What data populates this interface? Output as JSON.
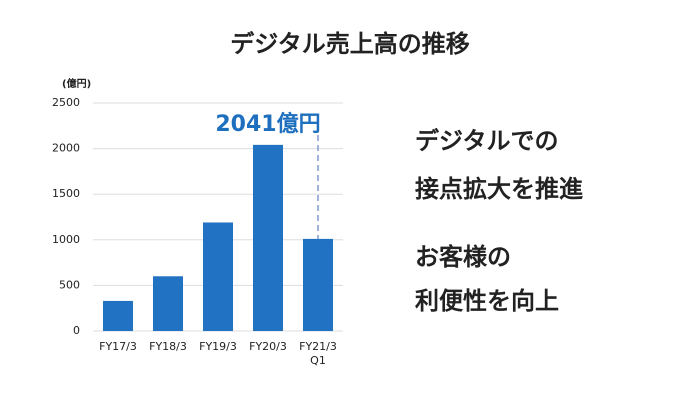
{
  "chart_data": {
    "type": "bar",
    "title": "デジタル売上高の推移",
    "y_unit": "(億円)",
    "categories": [
      "FY17/3",
      "FY18/3",
      "FY19/3",
      "FY20/3",
      "FY21/3 Q1"
    ],
    "values": [
      330,
      600,
      1190,
      2041,
      1010
    ],
    "value_labels": [
      null,
      null,
      null,
      "2041億円",
      null
    ],
    "color": "#2172c2",
    "ylim": [
      0,
      2500
    ],
    "yticks": [
      0,
      500,
      1000,
      1500,
      2000,
      2500
    ],
    "grid": true
  },
  "side_text": {
    "lines": [
      "デジタルでの",
      "接点拡大を推進",
      "お客様の",
      "利便性を向上"
    ]
  }
}
